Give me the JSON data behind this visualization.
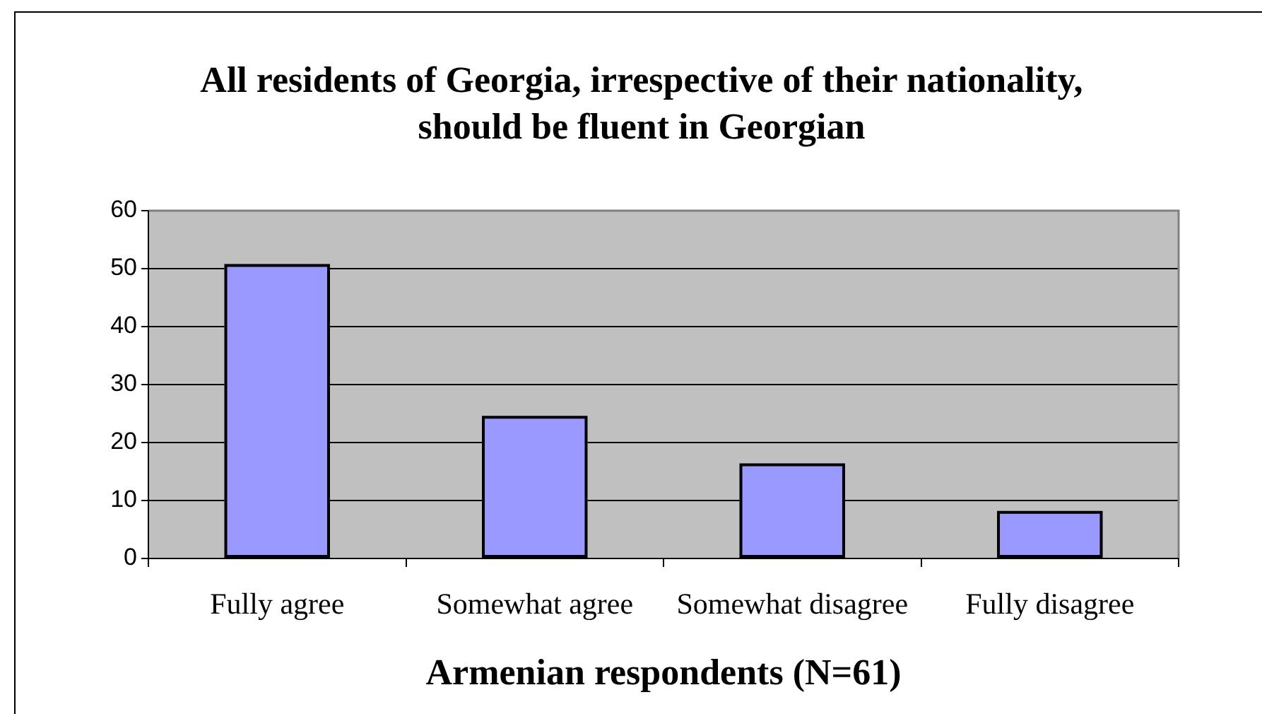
{
  "chart_data": {
    "type": "bar",
    "title": "All residents of Georgia, irrespective of their nationality, should be fluent in Georgian",
    "xlabel": "Armenian respondents (N=61)",
    "categories": [
      "Fully agree",
      "Somewhat agree",
      "Somewhat disagree",
      "Fully disagree"
    ],
    "values": [
      50.8,
      24.6,
      16.4,
      8.2
    ],
    "color": "#9999ff",
    "ylim": [
      0,
      60
    ],
    "yticks": [
      0,
      10,
      20,
      30,
      40,
      50,
      60
    ],
    "grid": "y"
  }
}
